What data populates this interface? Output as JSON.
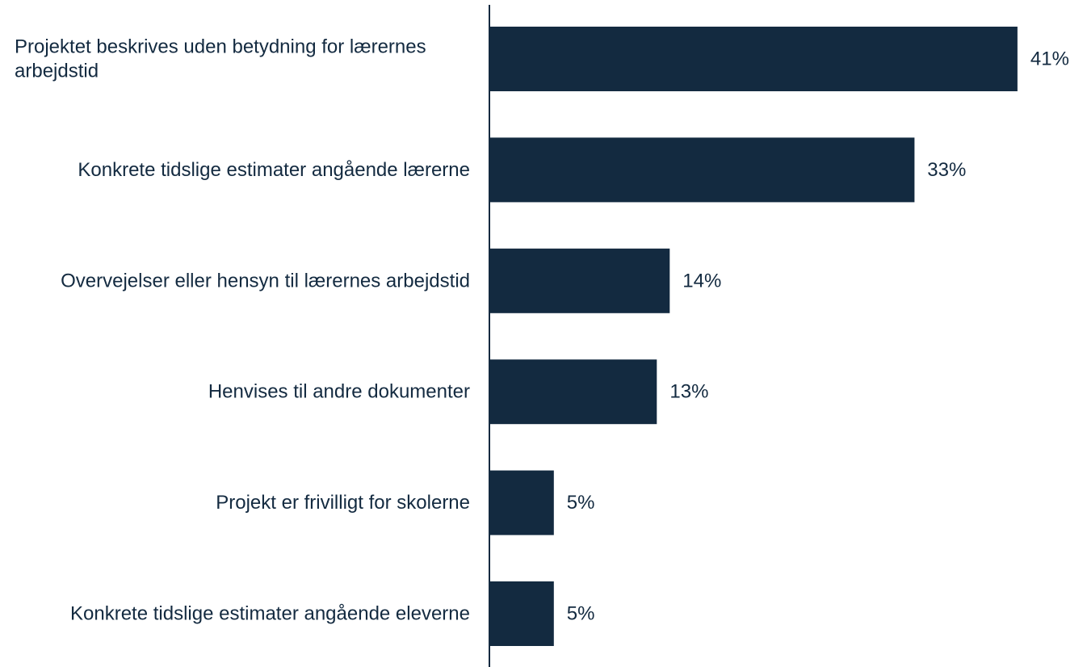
{
  "chart_data": {
    "type": "bar",
    "orientation": "horizontal",
    "categories": [
      "Projektet beskrives uden betydning for lærernes arbejdstid",
      "Konkrete tidslige estimater angående lærerne",
      "Overvejelser eller hensyn til lærernes arbejdstid",
      "Henvises til andre dokumenter",
      "Projekt er frivilligt for skolerne",
      "Konkrete tidslige estimater angående eleverne"
    ],
    "category_lines": [
      [
        "Projektet beskrives uden betydning for lærernes",
        "arbejdstid"
      ],
      [
        "Konkrete tidslige estimater angående lærerne"
      ],
      [
        "Overvejelser eller hensyn til lærernes arbejdstid"
      ],
      [
        "Henvises til andre dokumenter"
      ],
      [
        "Projekt er frivilligt for skolerne"
      ],
      [
        "Konkrete tidslige estimater angående eleverne"
      ]
    ],
    "values": [
      41,
      33,
      14,
      13,
      5,
      5
    ],
    "value_labels": [
      "41%",
      "33%",
      "14%",
      "13%",
      "5%",
      "5%"
    ],
    "unit": "%",
    "xlim": [
      0,
      100
    ],
    "grid": false,
    "legend": "none",
    "bar_color": "#132a40",
    "text_color": "#132a40",
    "axis_color": "#132a40"
  }
}
